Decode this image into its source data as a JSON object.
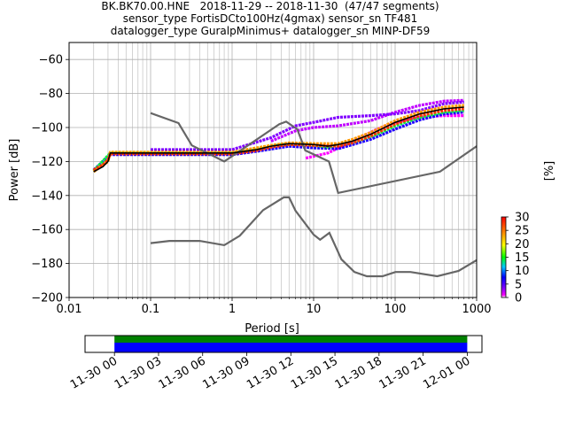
{
  "chart_data": {
    "type": "heatmap",
    "title_lines": [
      "BK.BK70.00.HNE   2018-11-29 -- 2018-11-30  (47/47 segments)",
      "sensor_type FortisDCto100Hz(4gmax) sensor_sn TF481",
      "datalogger_type GuralpMinimus+ datalogger_sn MINP-DF59"
    ],
    "xlabel": "Period [s]",
    "ylabel": "Power [dB]",
    "x_scale": "log",
    "xlim": [
      0.01,
      1000
    ],
    "ylim": [
      -200,
      -50
    ],
    "x_ticks": [
      {
        "v": 0.01,
        "label": "0.01"
      },
      {
        "v": 0.1,
        "label": "0.1"
      },
      {
        "v": 1,
        "label": "1"
      },
      {
        "v": 10,
        "label": "10"
      },
      {
        "v": 100,
        "label": "100"
      },
      {
        "v": 1000,
        "label": "1000"
      }
    ],
    "y_ticks": [
      {
        "v": -60,
        "label": "−60"
      },
      {
        "v": -80,
        "label": "−80"
      },
      {
        "v": -100,
        "label": "−100"
      },
      {
        "v": -120,
        "label": "−120"
      },
      {
        "v": -140,
        "label": "−140"
      },
      {
        "v": -160,
        "label": "−160"
      },
      {
        "v": -180,
        "label": "−180"
      },
      {
        "v": -200,
        "label": "−200"
      }
    ],
    "grid": true,
    "colorbar": {
      "label": "[%]",
      "range": [
        0,
        30
      ],
      "ticks": [
        {
          "v": 0,
          "label": "0"
        },
        {
          "v": 5,
          "label": "5"
        },
        {
          "v": 10,
          "label": "10"
        },
        {
          "v": 15,
          "label": "15"
        },
        {
          "v": 20,
          "label": "20"
        },
        {
          "v": 25,
          "label": "25"
        },
        {
          "v": 30,
          "label": "30"
        }
      ]
    },
    "noise_models": {
      "high": [
        [
          0.1,
          -91.5
        ],
        [
          0.22,
          -97.4
        ],
        [
          0.32,
          -110.5
        ],
        [
          0.8,
          -120
        ],
        [
          3.8,
          -98
        ],
        [
          4.6,
          -96.5
        ],
        [
          6.3,
          -101
        ],
        [
          7.9,
          -113.5
        ],
        [
          15.4,
          -120
        ],
        [
          20,
          -138.5
        ],
        [
          354.8,
          -126
        ],
        [
          1000,
          -111
        ]
      ],
      "low": [
        [
          0.1,
          -168
        ],
        [
          0.17,
          -166.7
        ],
        [
          0.4,
          -166.7
        ],
        [
          0.8,
          -169.2
        ],
        [
          1.24,
          -163.7
        ],
        [
          2.4,
          -148.6
        ],
        [
          4.3,
          -141.1
        ],
        [
          5,
          -141.1
        ],
        [
          6,
          -149
        ],
        [
          10,
          -163
        ],
        [
          12,
          -166
        ],
        [
          15.6,
          -162
        ],
        [
          21.9,
          -177.5
        ],
        [
          31.6,
          -185
        ],
        [
          45,
          -187.5
        ],
        [
          70,
          -187.5
        ],
        [
          101,
          -185
        ],
        [
          154,
          -185
        ],
        [
          328,
          -187.5
        ],
        [
          600,
          -184.4
        ],
        [
          1000,
          -178
        ]
      ]
    },
    "mean_curve": [
      [
        0.02,
        -126
      ],
      [
        0.026,
        -123
      ],
      [
        0.03,
        -120
      ],
      [
        0.032,
        -115
      ],
      [
        0.1,
        -115
      ],
      [
        0.5,
        -115
      ],
      [
        1,
        -115
      ],
      [
        2,
        -113
      ],
      [
        3,
        -111
      ],
      [
        5,
        -109.5
      ],
      [
        10,
        -110
      ],
      [
        15,
        -111
      ],
      [
        20,
        -110
      ],
      [
        30,
        -108
      ],
      [
        50,
        -104
      ],
      [
        100,
        -97
      ],
      [
        200,
        -92
      ],
      [
        400,
        -89
      ],
      [
        700,
        -88
      ]
    ],
    "density_ridges": [
      {
        "pct": 28,
        "points": [
          [
            0.02,
            -125
          ],
          [
            0.026,
            -122
          ],
          [
            0.03,
            -119
          ],
          [
            0.032,
            -115.5
          ],
          [
            0.5,
            -115.5
          ],
          [
            1,
            -115.5
          ],
          [
            2,
            -113.5
          ],
          [
            3,
            -111.5
          ],
          [
            5,
            -110
          ],
          [
            10,
            -110.5
          ],
          [
            20,
            -111
          ],
          [
            30,
            -109
          ],
          [
            50,
            -105
          ],
          [
            100,
            -98
          ],
          [
            200,
            -93
          ],
          [
            400,
            -90
          ],
          [
            700,
            -89
          ]
        ]
      },
      {
        "pct": 24,
        "points": [
          [
            0.02,
            -126
          ],
          [
            0.03,
            -120
          ],
          [
            0.032,
            -114.5
          ],
          [
            1,
            -114.5
          ],
          [
            3,
            -110.5
          ],
          [
            5,
            -109
          ],
          [
            10,
            -109.5
          ],
          [
            20,
            -109.5
          ],
          [
            30,
            -107
          ],
          [
            50,
            -103
          ],
          [
            100,
            -96
          ],
          [
            200,
            -91
          ],
          [
            400,
            -88
          ],
          [
            700,
            -87
          ]
        ]
      },
      {
        "pct": 14,
        "points": [
          [
            0.02,
            -125.5
          ],
          [
            0.032,
            -115
          ],
          [
            1,
            -115
          ],
          [
            2,
            -113
          ],
          [
            4,
            -110
          ],
          [
            8,
            -110
          ],
          [
            15,
            -111.5
          ],
          [
            30,
            -109
          ],
          [
            60,
            -104
          ],
          [
            100,
            -99
          ],
          [
            200,
            -94
          ],
          [
            400,
            -91
          ],
          [
            700,
            -90
          ]
        ]
      },
      {
        "pct": 6,
        "points": [
          [
            0.02,
            -125
          ],
          [
            0.032,
            -116
          ],
          [
            1,
            -116
          ],
          [
            2,
            -114
          ],
          [
            5,
            -111
          ],
          [
            10,
            -112
          ],
          [
            20,
            -112.5
          ],
          [
            50,
            -107
          ],
          [
            100,
            -101
          ],
          [
            200,
            -95.5
          ],
          [
            400,
            -92
          ],
          [
            700,
            -91
          ]
        ]
      },
      {
        "pct": 3,
        "points": [
          [
            0.1,
            -113
          ],
          [
            1,
            -113
          ],
          [
            3,
            -106
          ],
          [
            6,
            -99
          ],
          [
            10,
            -97
          ],
          [
            20,
            -94
          ],
          [
            50,
            -93
          ],
          [
            100,
            -92
          ],
          [
            200,
            -90
          ],
          [
            400,
            -86
          ],
          [
            700,
            -85
          ]
        ]
      },
      {
        "pct": 2,
        "points": [
          [
            3,
            -108
          ],
          [
            6,
            -102
          ],
          [
            10,
            -100
          ],
          [
            20,
            -99
          ],
          [
            50,
            -96
          ],
          [
            100,
            -91
          ],
          [
            200,
            -87
          ],
          [
            400,
            -84.5
          ],
          [
            700,
            -84
          ]
        ]
      },
      {
        "pct": 1,
        "points": [
          [
            8,
            -118
          ],
          [
            15,
            -115
          ],
          [
            30,
            -108
          ],
          [
            60,
            -101
          ],
          [
            100,
            -97
          ],
          [
            200,
            -94
          ],
          [
            400,
            -93
          ],
          [
            700,
            -93
          ]
        ]
      }
    ],
    "time_axis": {
      "tick_labels": [
        "11-30 00",
        "11-30 03",
        "11-30 06",
        "11-30 09",
        "11-30 12",
        "11-30 15",
        "11-30 18",
        "11-30 21",
        "12-01 00"
      ],
      "coverage_hours": [
        0,
        24
      ],
      "axis_hours": [
        -2,
        25
      ]
    }
  }
}
